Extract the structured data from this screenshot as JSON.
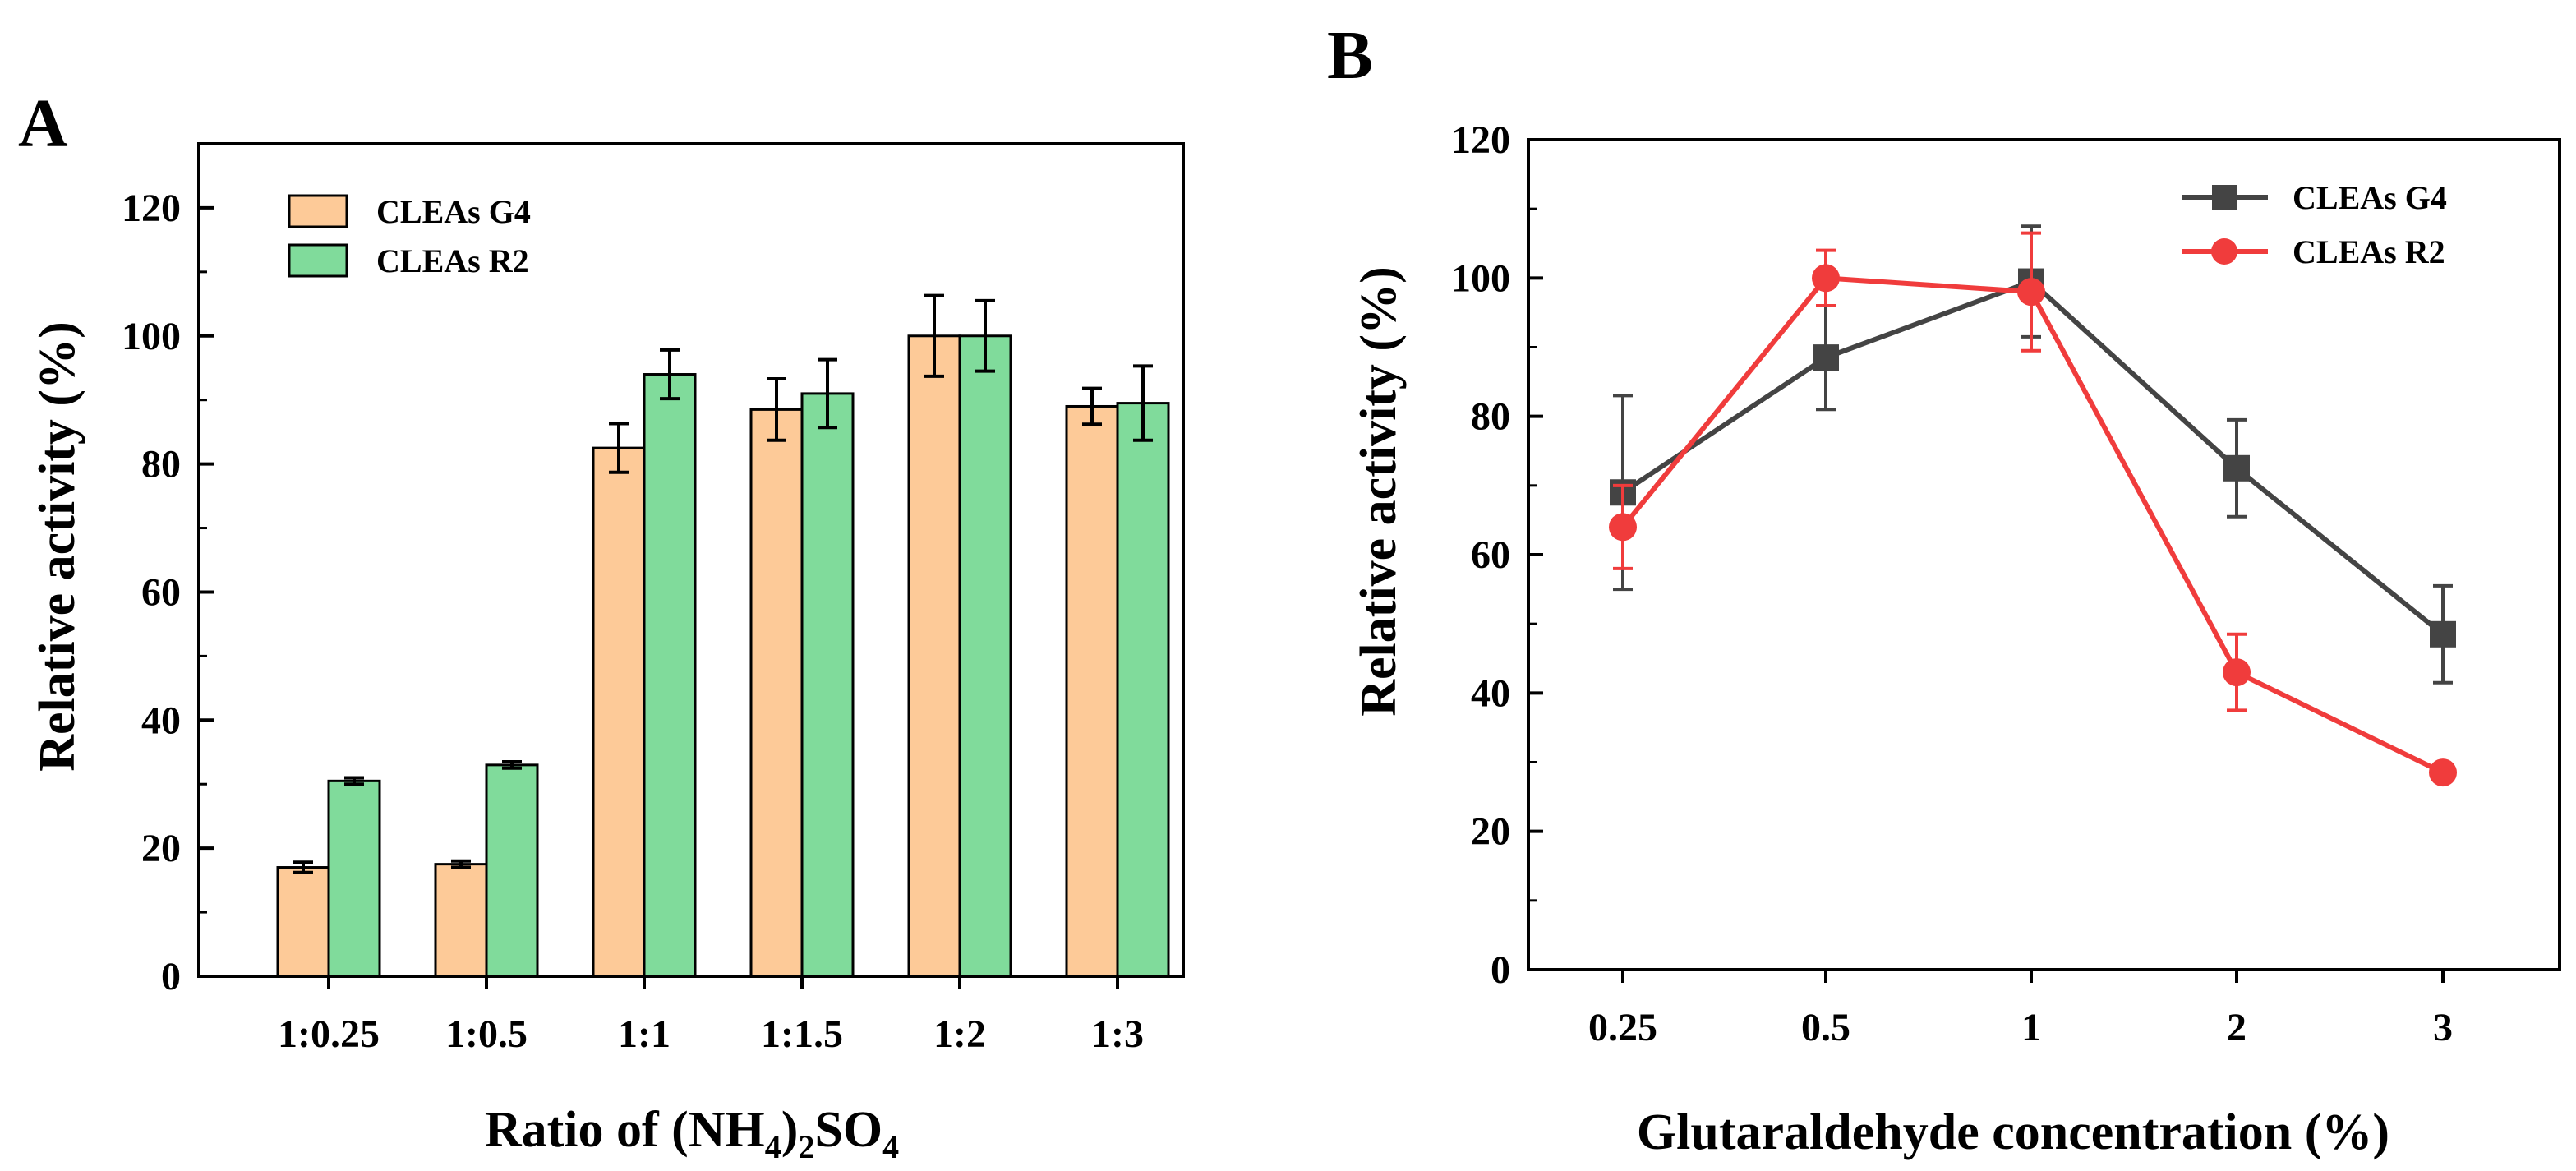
{
  "chart_data": [
    {
      "panel_label": "A",
      "type": "bar",
      "xlabel_parts": [
        "Ratio of (NH",
        "4",
        ")",
        "2",
        "SO",
        "4"
      ],
      "ylabel": "Relative activity (%)",
      "ylim": [
        0,
        130
      ],
      "yticks": [
        0,
        20,
        40,
        60,
        80,
        100,
        120
      ],
      "categories": [
        "1:0.25",
        "1:0.5",
        "1:1",
        "1:1.5",
        "1:2",
        "1:3"
      ],
      "legend_position": "top-left",
      "series": [
        {
          "name": "CLEAs G4",
          "color": "#FDCA98",
          "values": [
            17,
            17.5,
            82.5,
            88.5,
            100,
            89
          ],
          "errors": [
            0.8,
            0.5,
            3.8,
            4.8,
            6.3,
            2.8
          ]
        },
        {
          "name": "CLEAs R2",
          "color": "#80DB9B",
          "values": [
            30.5,
            33,
            94,
            91,
            100,
            89.5
          ],
          "errors": [
            0.5,
            0.5,
            3.8,
            5.3,
            5.5,
            5.8
          ]
        }
      ]
    },
    {
      "panel_label": "B",
      "type": "line",
      "xlabel": "Glutaraldehyde concentration (%)",
      "ylabel": "Relative activity (%)",
      "ylim": [
        0,
        120
      ],
      "yticks": [
        0,
        20,
        40,
        60,
        80,
        100,
        120
      ],
      "categories": [
        "0.25",
        "0.5",
        "1",
        "2",
        "3"
      ],
      "legend_position": "top-right",
      "series": [
        {
          "name": "CLEAs G4",
          "color": "#444444",
          "marker": "square",
          "values": [
            69,
            88.5,
            99.5,
            72.5,
            48.5
          ],
          "errors": [
            14,
            7.5,
            8,
            7,
            7
          ]
        },
        {
          "name": "CLEAs R2",
          "color": "#F03C3C",
          "marker": "circle",
          "values": [
            64,
            100,
            98,
            43,
            28.5
          ],
          "errors": [
            6,
            4,
            8.5,
            5.5,
            0.5
          ]
        }
      ]
    }
  ]
}
